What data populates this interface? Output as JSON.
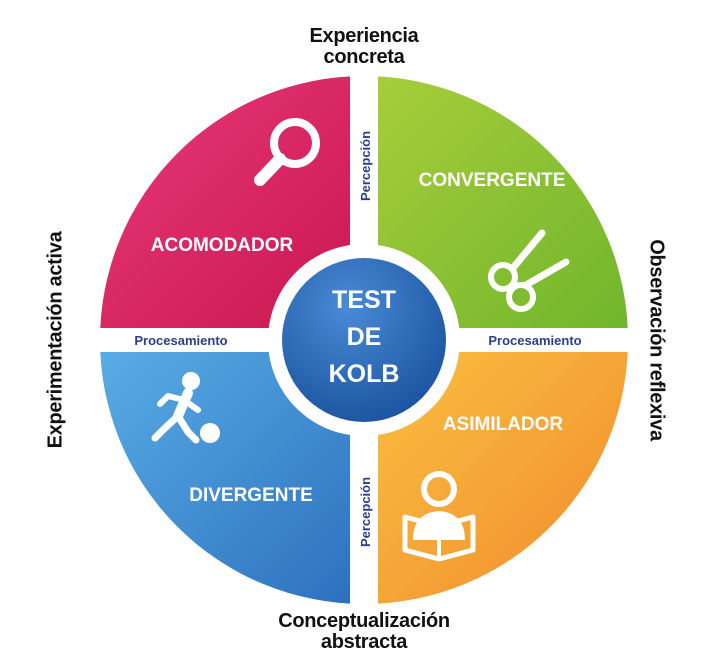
{
  "center": {
    "lines": [
      "TEST",
      "DE",
      "KOLB"
    ]
  },
  "quadrants": {
    "acomodador": {
      "label": "ACOMODADOR",
      "icon": "magnifier-icon"
    },
    "convergente": {
      "label": "CONVERGENTE",
      "icon": "scissors-icon"
    },
    "divergente": {
      "label": "DIVERGENTE",
      "icon": "soccer-player-icon"
    },
    "asimilador": {
      "label": "ASIMILADOR",
      "icon": "reader-icon"
    }
  },
  "dividers": {
    "top": "Percepción",
    "bottom": "Percepción",
    "left": "Procesamiento",
    "right": "Procesamiento"
  },
  "axes": {
    "top": [
      "Experiencia",
      "concreta"
    ],
    "bottom": [
      "Conceptualización",
      "abstracta"
    ],
    "left": "Experimentación activa",
    "right": "Observación reflexiva"
  },
  "colors": {
    "acomodador": "#d81f5d",
    "convergente": "#8bc53f",
    "divergente": "#3d86cc",
    "asimilador": "#f7a23a",
    "center": "#1f5fb0",
    "divider_text": "#2a3f8f",
    "axis_text": "#111111"
  }
}
